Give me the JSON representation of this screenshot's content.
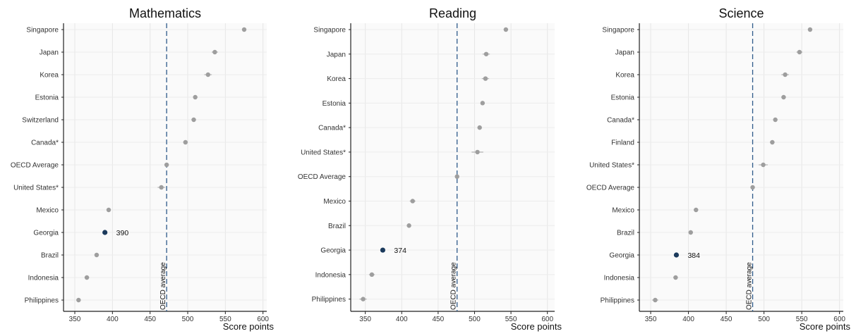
{
  "chart_data": [
    {
      "type": "scatter",
      "title": "Mathematics",
      "xlabel": "Score points",
      "xlim": [
        335,
        605
      ],
      "xticks": [
        350,
        400,
        450,
        500,
        550,
        600
      ],
      "reference_line": {
        "label": "OECD average",
        "value": 472
      },
      "highlight_color": "#1b3a5c",
      "point_color": "#9e9e9e",
      "reference_color": "#2e5a8a",
      "grid": true,
      "points": [
        {
          "country": "Singapore",
          "value": 575,
          "ci": 1.5
        },
        {
          "country": "Japan",
          "value": 536,
          "ci": 4
        },
        {
          "country": "Korea",
          "value": 527,
          "ci": 5
        },
        {
          "country": "Estonia",
          "value": 510,
          "ci": 2
        },
        {
          "country": "Switzerland",
          "value": 508,
          "ci": 3
        },
        {
          "country": "Canada*",
          "value": 497,
          "ci": 2
        },
        {
          "country": "OECD Average",
          "value": 472,
          "ci": 0.5
        },
        {
          "country": "United States*",
          "value": 465,
          "ci": 5
        },
        {
          "country": "Mexico",
          "value": 395,
          "ci": 2.5
        },
        {
          "country": "Georgia",
          "value": 390,
          "ci": 2.5,
          "highlight": true,
          "label": "390"
        },
        {
          "country": "Brazil",
          "value": 379,
          "ci": 1.5
        },
        {
          "country": "Indonesia",
          "value": 366,
          "ci": 3
        },
        {
          "country": "Philippines",
          "value": 355,
          "ci": 3
        }
      ]
    },
    {
      "type": "scatter",
      "title": "Reading",
      "xlabel": "Score points",
      "xlim": [
        330,
        610
      ],
      "xticks": [
        350,
        400,
        450,
        500,
        550,
        600
      ],
      "reference_line": {
        "label": "OECD average",
        "value": 476
      },
      "highlight_color": "#1b3a5c",
      "point_color": "#9e9e9e",
      "reference_color": "#2e5a8a",
      "grid": true,
      "points": [
        {
          "country": "Singapore",
          "value": 543,
          "ci": 2
        },
        {
          "country": "Japan",
          "value": 516,
          "ci": 5
        },
        {
          "country": "Korea",
          "value": 515,
          "ci": 5
        },
        {
          "country": "Estonia",
          "value": 511,
          "ci": 2.5
        },
        {
          "country": "Canada*",
          "value": 507,
          "ci": 2
        },
        {
          "country": "United States*",
          "value": 504,
          "ci": 8
        },
        {
          "country": "OECD Average",
          "value": 476,
          "ci": 0.5
        },
        {
          "country": "Mexico",
          "value": 415,
          "ci": 4
        },
        {
          "country": "Brazil",
          "value": 410,
          "ci": 2
        },
        {
          "country": "Georgia",
          "value": 374,
          "ci": 3,
          "highlight": true,
          "label": "374"
        },
        {
          "country": "Indonesia",
          "value": 359,
          "ci": 4
        },
        {
          "country": "Philippines",
          "value": 347,
          "ci": 5
        }
      ]
    },
    {
      "type": "scatter",
      "title": "Science",
      "xlabel": "Score points",
      "xlim": [
        335,
        605
      ],
      "xticks": [
        350,
        400,
        450,
        500,
        550,
        600
      ],
      "reference_line": {
        "label": "OECD average",
        "value": 485
      },
      "highlight_color": "#1b3a5c",
      "point_color": "#9e9e9e",
      "reference_color": "#2e5a8a",
      "grid": true,
      "points": [
        {
          "country": "Singapore",
          "value": 561,
          "ci": 1.5
        },
        {
          "country": "Japan",
          "value": 547,
          "ci": 4
        },
        {
          "country": "Korea",
          "value": 528,
          "ci": 5
        },
        {
          "country": "Estonia",
          "value": 526,
          "ci": 3
        },
        {
          "country": "Canada*",
          "value": 515,
          "ci": 2
        },
        {
          "country": "Finland",
          "value": 511,
          "ci": 3
        },
        {
          "country": "United States*",
          "value": 499,
          "ci": 6
        },
        {
          "country": "OECD Average",
          "value": 485,
          "ci": 0.5
        },
        {
          "country": "Mexico",
          "value": 410,
          "ci": 3
        },
        {
          "country": "Brazil",
          "value": 403,
          "ci": 2
        },
        {
          "country": "Georgia",
          "value": 384,
          "ci": 3,
          "highlight": true,
          "label": "384"
        },
        {
          "country": "Indonesia",
          "value": 383,
          "ci": 3
        },
        {
          "country": "Philippines",
          "value": 356,
          "ci": 4
        }
      ]
    }
  ]
}
